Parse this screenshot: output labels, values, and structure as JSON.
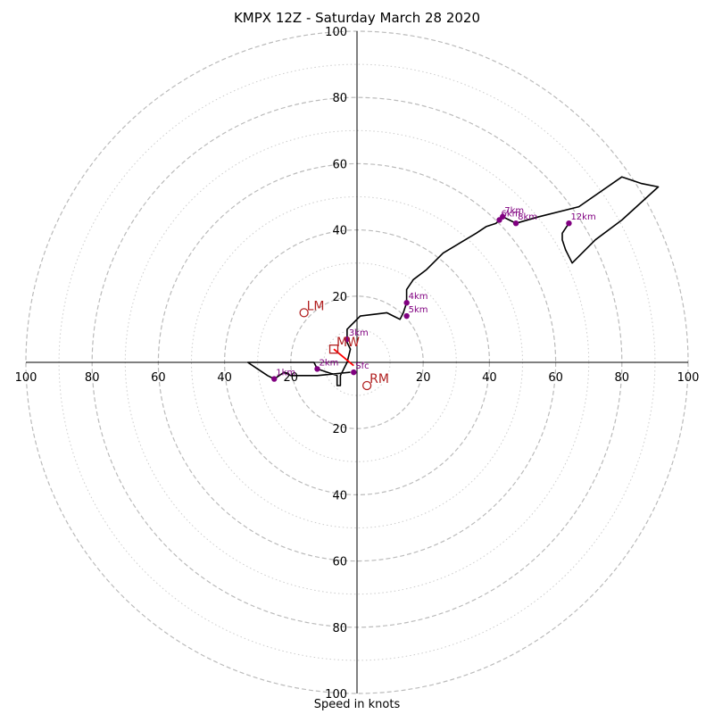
{
  "chart_data": {
    "type": "hodograph",
    "title": "KMPX 12Z - Saturday March 28 2020",
    "xlabel": "Speed in knots",
    "range": [
      -100,
      100
    ],
    "ring_major": [
      20,
      40,
      60,
      80,
      100
    ],
    "ring_minor": [
      10,
      30,
      50,
      70,
      90
    ],
    "tick_labels": {
      "x_left": [
        "100",
        "80",
        "60",
        "40",
        "20"
      ],
      "x_right": [
        "20",
        "40",
        "60",
        "80",
        "100"
      ],
      "y_up": [
        "20",
        "40",
        "60",
        "80",
        "100"
      ],
      "y_down": [
        "20",
        "40",
        "60",
        "80",
        "100"
      ]
    },
    "trace": [
      [
        -2,
        -3
      ],
      [
        -12,
        -4
      ],
      [
        -20,
        -4
      ],
      [
        -22,
        -3
      ],
      [
        -25,
        -5
      ],
      [
        -27,
        -4
      ],
      [
        -30,
        -2
      ],
      [
        -33,
        0
      ],
      [
        -13,
        0
      ],
      [
        -12,
        -2
      ],
      [
        -6,
        -4
      ],
      [
        -6,
        -7
      ],
      [
        -5,
        -7
      ],
      [
        -5,
        -4
      ],
      [
        -3,
        0
      ],
      [
        -2,
        4
      ],
      [
        -3,
        6
      ],
      [
        -3,
        8
      ],
      [
        -3,
        10
      ],
      [
        -1,
        12
      ],
      [
        1,
        14
      ],
      [
        9,
        15
      ],
      [
        11,
        14
      ],
      [
        13,
        13
      ],
      [
        14,
        15
      ],
      [
        15,
        18
      ],
      [
        15,
        22
      ],
      [
        17,
        25
      ],
      [
        21,
        28
      ],
      [
        26,
        33
      ],
      [
        31,
        36
      ],
      [
        36,
        39
      ],
      [
        39,
        41
      ],
      [
        42,
        42
      ],
      [
        44,
        44
      ],
      [
        46,
        43
      ],
      [
        48,
        42
      ],
      [
        55,
        44
      ],
      [
        67,
        47
      ],
      [
        80,
        56
      ],
      [
        86,
        54
      ],
      [
        91,
        53
      ],
      [
        80,
        43
      ],
      [
        72,
        37
      ],
      [
        65,
        30
      ],
      [
        63,
        34
      ],
      [
        62,
        37
      ],
      [
        62,
        39
      ],
      [
        64,
        42
      ]
    ],
    "heights": [
      {
        "label": "Sfc",
        "u": -1,
        "v": -3
      },
      {
        "label": "1km",
        "u": -25,
        "v": -5
      },
      {
        "label": "2km",
        "u": -12,
        "v": -2
      },
      {
        "label": "3km",
        "u": -3,
        "v": 7
      },
      {
        "label": "4km",
        "u": 15,
        "v": 18
      },
      {
        "label": "5km",
        "u": 15,
        "v": 14
      },
      {
        "label": "6km",
        "u": 43,
        "v": 43
      },
      {
        "label": "7km",
        "u": 44,
        "v": 44
      },
      {
        "label": "8km",
        "u": 48,
        "v": 42
      },
      {
        "label": "12km",
        "u": 64,
        "v": 42
      }
    ],
    "storm_motion": {
      "LM": {
        "label": "LM",
        "u": -16,
        "v": 15
      },
      "RM": {
        "label": "RM",
        "u": 3,
        "v": -7
      },
      "MW": {
        "label": "MW",
        "u": -7,
        "v": 4
      }
    },
    "shear_vector": {
      "from": [
        -1,
        -1
      ],
      "to": [
        -7,
        4
      ]
    },
    "colors": {
      "trace": "#000000",
      "height_markers": "#800080",
      "storm_motion": "#b22222",
      "shear_vector": "#ff0000",
      "grid": "#bbbbbb"
    }
  }
}
